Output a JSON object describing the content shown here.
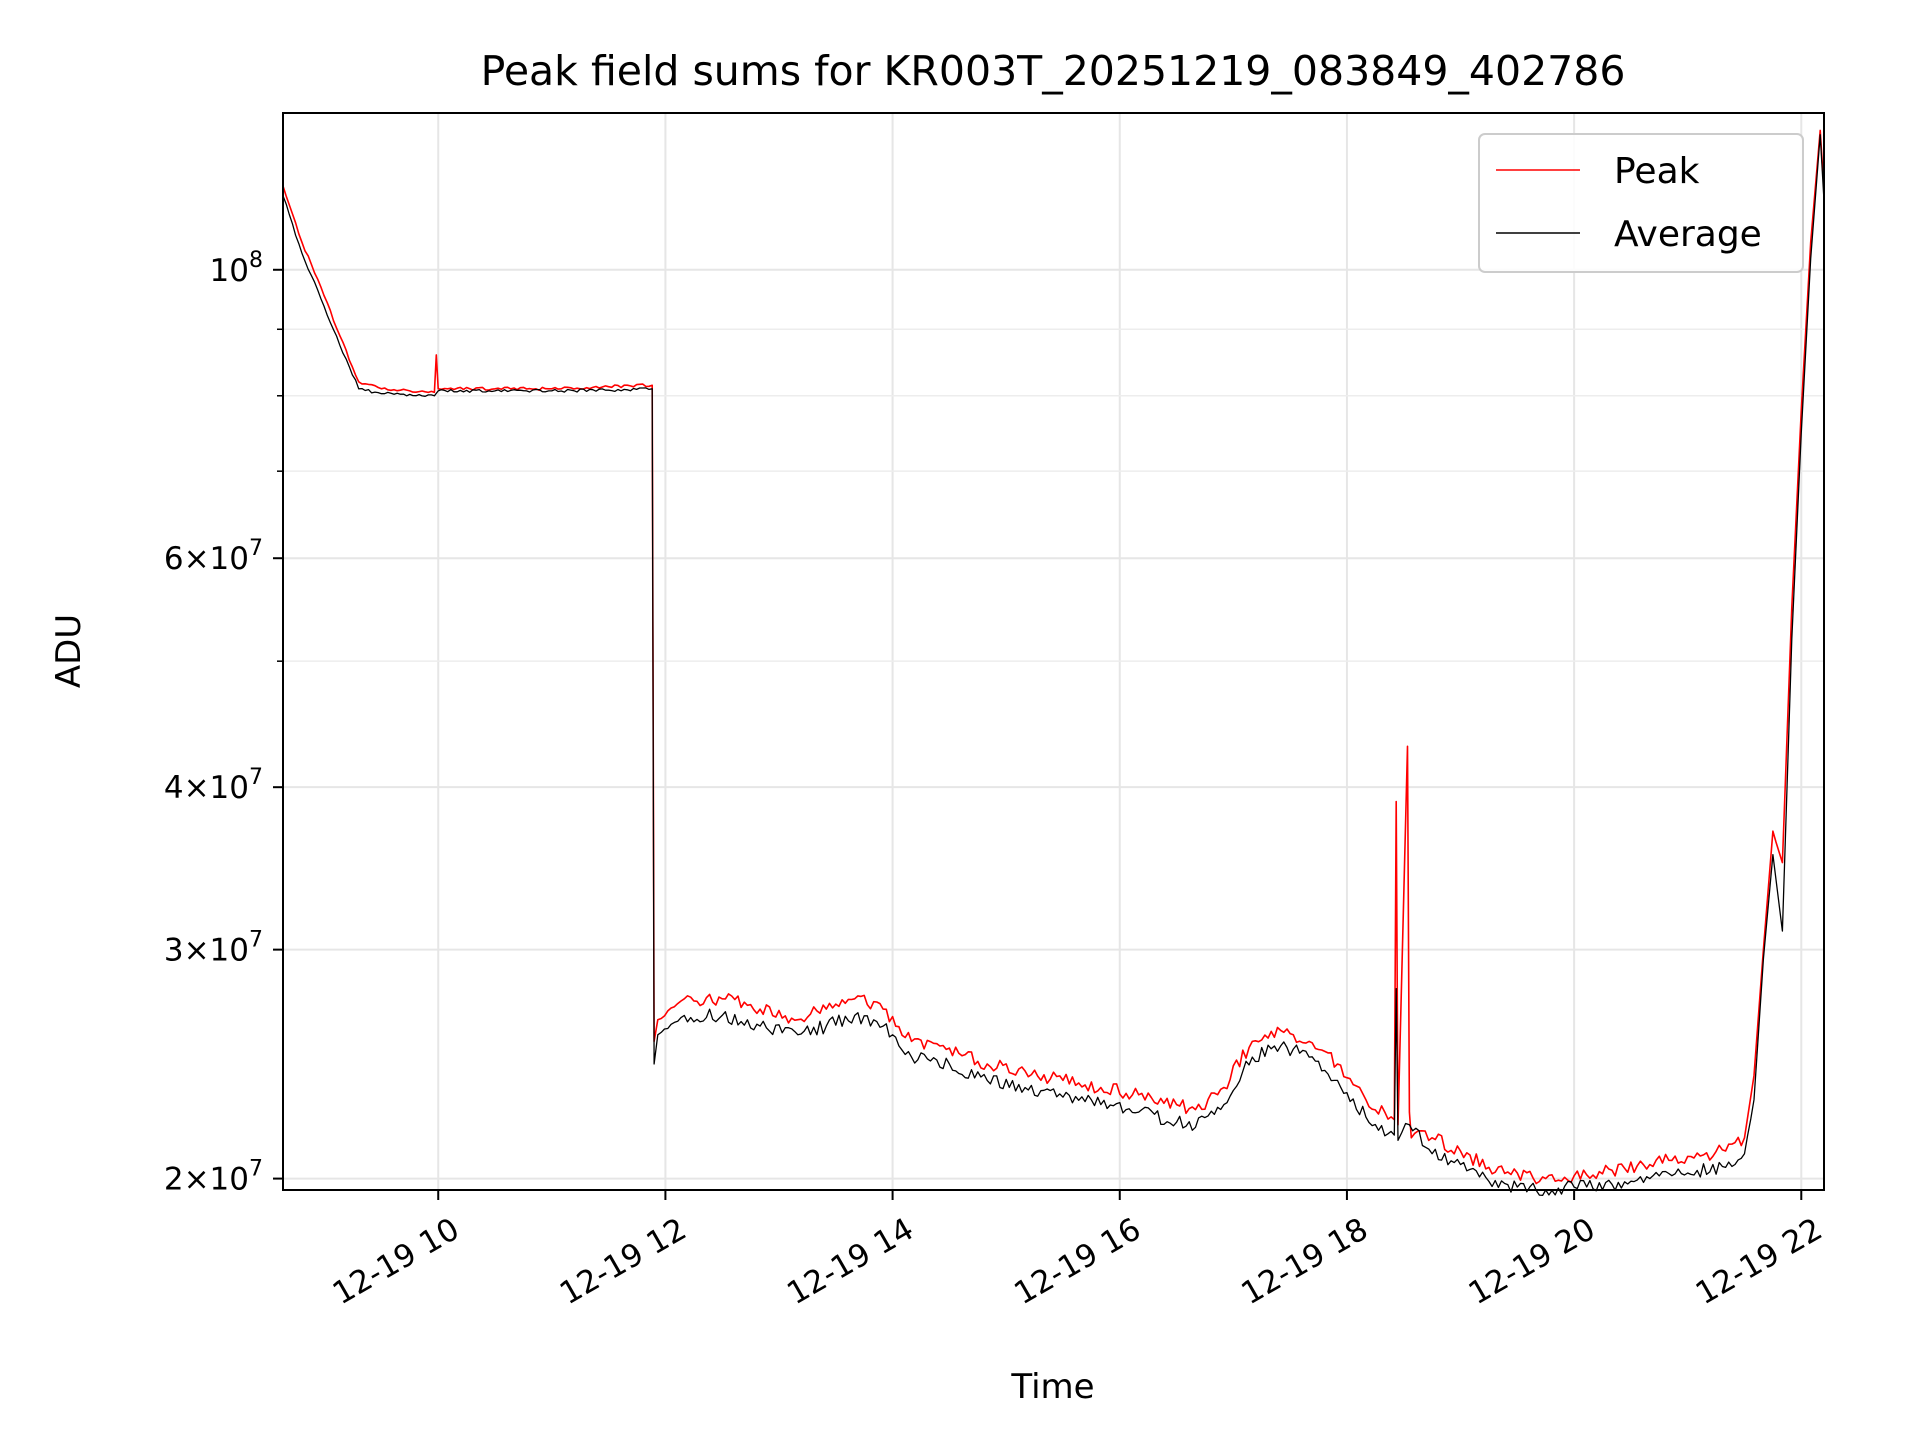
{
  "chart_data": {
    "type": "line",
    "title": "Peak field sums for KR003T_20251219_083849_402786",
    "xlabel": "Time",
    "ylabel": "ADU",
    "y_scale": "log",
    "xlim": [
      "2025-12-19T08:38",
      "2025-12-19T22:12"
    ],
    "ylim": [
      19600000,
      132000000
    ],
    "grid": true,
    "legend_position": "upper right",
    "x_ticks": [
      {
        "value": "2025-12-19T10:00",
        "label": "12-19 10"
      },
      {
        "value": "2025-12-19T12:00",
        "label": "12-19 12"
      },
      {
        "value": "2025-12-19T14:00",
        "label": "12-19 14"
      },
      {
        "value": "2025-12-19T16:00",
        "label": "12-19 16"
      },
      {
        "value": "2025-12-19T18:00",
        "label": "12-19 18"
      },
      {
        "value": "2025-12-19T20:00",
        "label": "12-19 20"
      },
      {
        "value": "2025-12-19T22:00",
        "label": "12-19 22"
      }
    ],
    "y_ticks": [
      {
        "value": 100000000,
        "mantissa": "",
        "exponent": "8"
      },
      {
        "value": 60000000,
        "mantissa": "6",
        "exponent": "7"
      },
      {
        "value": 40000000,
        "mantissa": "4",
        "exponent": "7"
      },
      {
        "value": 30000000,
        "mantissa": "3",
        "exponent": "7"
      },
      {
        "value": 20000000,
        "mantissa": "2",
        "exponent": "7"
      }
    ],
    "y_minor_ticks": [
      50000000,
      70000000,
      80000000,
      90000000
    ],
    "series": [
      {
        "name": "Peak",
        "color": "#ff0000",
        "x": [
          "2025-12-19T08:38",
          "2025-12-19T08:48",
          "2025-12-19T08:58",
          "2025-12-19T09:08",
          "2025-12-19T09:18",
          "2025-12-19T09:30",
          "2025-12-19T09:45",
          "2025-12-19T09:58",
          "2025-12-19T09:59",
          "2025-12-19T10:00",
          "2025-12-19T10:30",
          "2025-12-19T11:00",
          "2025-12-19T11:30",
          "2025-12-19T11:53",
          "2025-12-19T11:54",
          "2025-12-19T11:56",
          "2025-12-19T12:10",
          "2025-12-19T12:30",
          "2025-12-19T12:50",
          "2025-12-19T13:10",
          "2025-12-19T13:25",
          "2025-12-19T13:40",
          "2025-12-19T13:55",
          "2025-12-19T14:10",
          "2025-12-19T14:30",
          "2025-12-19T14:50",
          "2025-12-19T15:10",
          "2025-12-19T15:30",
          "2025-12-19T15:50",
          "2025-12-19T16:10",
          "2025-12-19T16:30",
          "2025-12-19T16:40",
          "2025-12-19T16:55",
          "2025-12-19T17:10",
          "2025-12-19T17:25",
          "2025-12-19T17:40",
          "2025-12-19T17:55",
          "2025-12-19T18:10",
          "2025-12-19T18:25",
          "2025-12-19T18:26",
          "2025-12-19T18:27",
          "2025-12-19T18:32",
          "2025-12-19T18:33",
          "2025-12-19T18:34",
          "2025-12-19T18:45",
          "2025-12-19T19:00",
          "2025-12-19T19:15",
          "2025-12-19T19:30",
          "2025-12-19T19:45",
          "2025-12-19T20:00",
          "2025-12-19T20:20",
          "2025-12-19T20:40",
          "2025-12-19T21:00",
          "2025-12-19T21:20",
          "2025-12-19T21:30",
          "2025-12-19T21:35",
          "2025-12-19T21:40",
          "2025-12-19T21:45",
          "2025-12-19T21:50",
          "2025-12-19T21:55",
          "2025-12-19T22:00",
          "2025-12-19T22:05",
          "2025-12-19T22:10",
          "2025-12-19T22:12"
        ],
        "y": [
          116000000,
          105000000,
          97000000,
          89000000,
          82000000,
          81000000,
          80700000,
          80500000,
          86000000,
          81000000,
          81000000,
          81000000,
          81300000,
          81500000,
          25500000,
          26500000,
          27500000,
          27500000,
          27000000,
          26500000,
          27000000,
          27500000,
          27000000,
          25500000,
          25200000,
          24500000,
          24200000,
          23800000,
          23500000,
          23200000,
          22800000,
          22600000,
          23500000,
          25500000,
          26000000,
          25500000,
          24500000,
          23000000,
          22200000,
          39000000,
          22000000,
          43000000,
          22500000,
          21500000,
          21500000,
          21000000,
          20400000,
          20200000,
          20000000,
          20100000,
          20300000,
          20500000,
          20800000,
          21000000,
          21500000,
          24000000,
          30000000,
          37000000,
          35000000,
          55000000,
          78000000,
          105000000,
          128000000,
          115000000
        ]
      },
      {
        "name": "Average",
        "color": "#000000",
        "x": [
          "2025-12-19T08:38",
          "2025-12-19T08:48",
          "2025-12-19T08:58",
          "2025-12-19T09:08",
          "2025-12-19T09:18",
          "2025-12-19T09:30",
          "2025-12-19T09:45",
          "2025-12-19T09:58",
          "2025-12-19T10:00",
          "2025-12-19T10:30",
          "2025-12-19T11:00",
          "2025-12-19T11:30",
          "2025-12-19T11:53",
          "2025-12-19T11:54",
          "2025-12-19T11:56",
          "2025-12-19T12:10",
          "2025-12-19T12:30",
          "2025-12-19T12:50",
          "2025-12-19T13:10",
          "2025-12-19T13:25",
          "2025-12-19T13:40",
          "2025-12-19T13:55",
          "2025-12-19T14:10",
          "2025-12-19T14:30",
          "2025-12-19T14:50",
          "2025-12-19T15:10",
          "2025-12-19T15:30",
          "2025-12-19T15:50",
          "2025-12-19T16:10",
          "2025-12-19T16:30",
          "2025-12-19T16:40",
          "2025-12-19T16:55",
          "2025-12-19T17:10",
          "2025-12-19T17:25",
          "2025-12-19T17:40",
          "2025-12-19T17:55",
          "2025-12-19T18:10",
          "2025-12-19T18:25",
          "2025-12-19T18:26",
          "2025-12-19T18:27",
          "2025-12-19T18:33",
          "2025-12-19T18:45",
          "2025-12-19T19:00",
          "2025-12-19T19:15",
          "2025-12-19T19:30",
          "2025-12-19T19:45",
          "2025-12-19T20:00",
          "2025-12-19T20:20",
          "2025-12-19T20:40",
          "2025-12-19T21:00",
          "2025-12-19T21:20",
          "2025-12-19T21:30",
          "2025-12-19T21:35",
          "2025-12-19T21:40",
          "2025-12-19T21:45",
          "2025-12-19T21:50",
          "2025-12-19T21:55",
          "2025-12-19T22:00",
          "2025-12-19T22:05",
          "2025-12-19T22:10",
          "2025-12-19T22:12"
        ],
        "y": [
          114000000,
          103000000,
          95000000,
          87500000,
          81000000,
          80300000,
          80200000,
          80000000,
          80700000,
          80700000,
          80700000,
          80800000,
          81000000,
          24500000,
          25800000,
          26700000,
          26700000,
          26200000,
          25800000,
          26200000,
          26700000,
          26200000,
          24800000,
          24500000,
          23800000,
          23500000,
          23100000,
          22800000,
          22500000,
          22100000,
          21900000,
          22800000,
          24800000,
          25300000,
          24800000,
          23800000,
          22300000,
          21600000,
          28000000,
          21400000,
          22000000,
          20900000,
          20500000,
          19900000,
          19700000,
          19600000,
          19700000,
          19800000,
          20000000,
          20200000,
          20400000,
          20900000,
          23000000,
          29500000,
          35500000,
          31000000,
          52000000,
          75000000,
          102000000,
          127000000,
          113000000
        ]
      }
    ]
  }
}
